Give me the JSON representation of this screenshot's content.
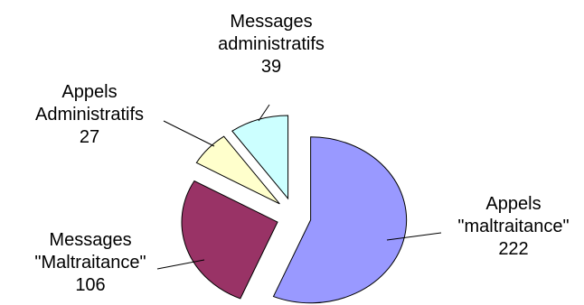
{
  "chart_data": {
    "type": "pie",
    "exploded": true,
    "slices": [
      {
        "label_lines": [
          "Appels",
          "\"maltraitance\""
        ],
        "value": 222,
        "value_text": "222",
        "color": "#9999ff"
      },
      {
        "label_lines": [
          "Messages",
          "\"Maltraitance\""
        ],
        "value": 106,
        "value_text": "106",
        "color": "#993366"
      },
      {
        "label_lines": [
          "Appels",
          "Administratifs"
        ],
        "value": 27,
        "value_text": "27",
        "color": "#ffffcc"
      },
      {
        "label_lines": [
          "Messages",
          "administratifs"
        ],
        "value": 39,
        "value_text": "39",
        "color": "#ccffff"
      }
    ]
  }
}
